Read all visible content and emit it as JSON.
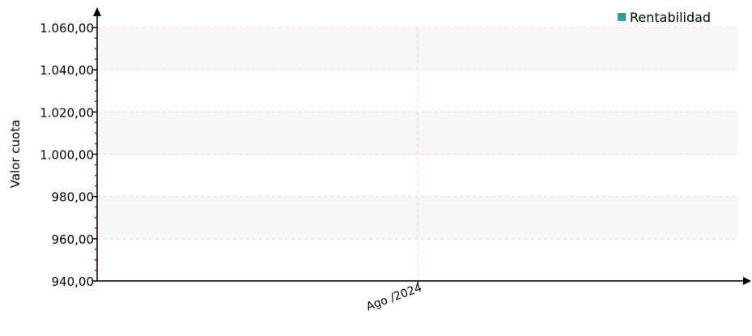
{
  "chart_data": {
    "type": "line",
    "title": "",
    "xlabel": "",
    "ylabel": "Valor cuota",
    "x_categories": [
      "Ago /2024"
    ],
    "ylim": [
      940,
      1060
    ],
    "y_ticks": [
      940,
      960,
      980,
      1000,
      1020,
      1040,
      1060
    ],
    "y_tick_labels": [
      "940,00",
      "960,00",
      "980,00",
      "1.000,00",
      "1.020,00",
      "1.040,00",
      "1.060,00"
    ],
    "grid": true,
    "legend_position": "top-right",
    "series": [
      {
        "name": "Rentabilidad",
        "color": "#26a69a",
        "values": []
      }
    ]
  },
  "colors": {
    "band": "#f7f7f7",
    "gridline": "#f2c9cf",
    "axis": "#000000",
    "minor_tick": "#cc0000"
  }
}
